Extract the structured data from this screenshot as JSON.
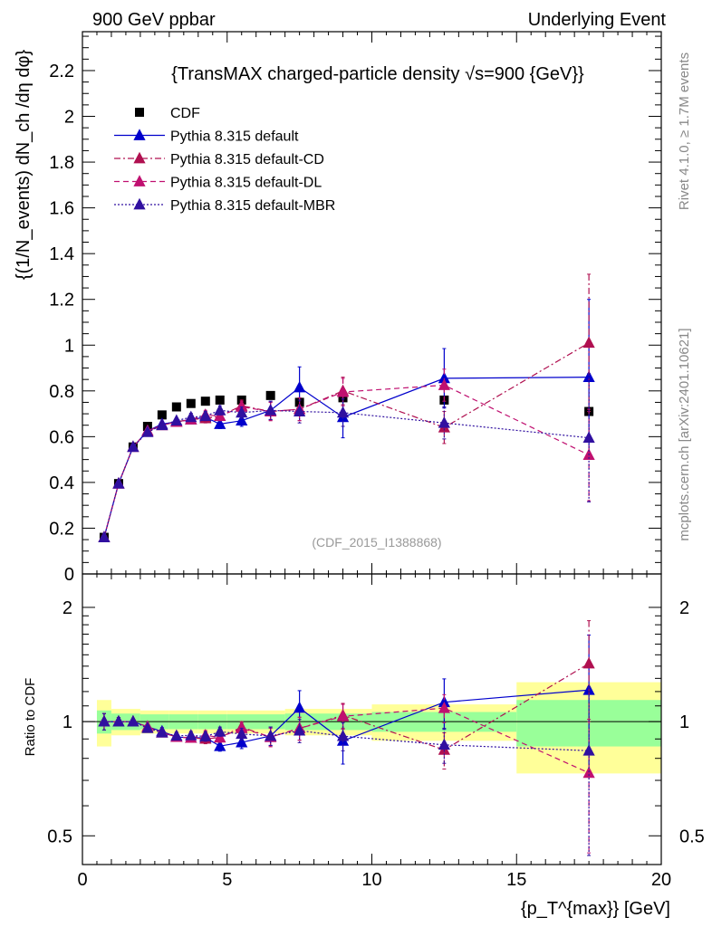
{
  "header": {
    "left": "900 GeV ppbar",
    "right": "Underlying Event"
  },
  "side_text": {
    "rivet": "Rivet 4.1.0, ≥ 1.7M events",
    "mcplots": "mcplots.cern.ch [arXiv:2401.10621]"
  },
  "chart_data": [
    {
      "type": "scatter",
      "panel": "main",
      "title": "{TransMAX charged-particle density √s=900 {GeV}}",
      "xlabel": "{p_T^{max}} [GeV]",
      "ylabel": "{(1/N_events) dN_ch /dη dφ}",
      "watermark": "(CDF_2015_I1388868)",
      "xlim": [
        0,
        20
      ],
      "ylim": [
        0,
        2.37
      ],
      "yticks": [
        "0",
        "0.2",
        "0.4",
        "0.6",
        "0.8",
        "1",
        "1.2",
        "1.4",
        "1.6",
        "1.8",
        "2",
        "2.2"
      ],
      "yticks_values": [
        0,
        0.2,
        0.4,
        0.6,
        0.8,
        1.0,
        1.2,
        1.4,
        1.6,
        1.8,
        2.0,
        2.2
      ],
      "xticks": [
        "0",
        "5",
        "10",
        "15",
        "20"
      ],
      "x": [
        0.75,
        1.25,
        1.75,
        2.25,
        2.75,
        3.25,
        3.75,
        4.25,
        4.75,
        5.5,
        6.5,
        7.5,
        9.0,
        12.5,
        17.5
      ],
      "series": [
        {
          "name": "CDF",
          "color": "#000000",
          "marker": "square",
          "values": [
            0.16,
            0.395,
            0.555,
            0.645,
            0.695,
            0.73,
            0.745,
            0.755,
            0.76,
            0.76,
            0.78,
            0.75,
            0.77,
            0.76,
            0.71
          ],
          "errors": [
            0.01,
            0.01,
            0.01,
            0.01,
            0.01,
            0.01,
            0.01,
            0.01,
            0.01,
            0.01,
            0.01,
            0.01,
            0.01,
            0.01,
            0.01
          ]
        },
        {
          "name": "Pythia 8.315 default",
          "color": "#0000cc",
          "line": "solid",
          "marker": "triangle",
          "values": [
            0.16,
            0.395,
            0.555,
            0.625,
            0.655,
            0.665,
            0.675,
            0.685,
            0.655,
            0.67,
            0.715,
            0.815,
            0.685,
            0.855,
            0.86
          ],
          "errors": [
            0.008,
            0.01,
            0.01,
            0.012,
            0.015,
            0.015,
            0.017,
            0.02,
            0.02,
            0.025,
            0.04,
            0.09,
            0.09,
            0.13,
            0.34
          ]
        },
        {
          "name": "Pythia 8.315 default-CD",
          "color": "#b01050",
          "line": "dashdot",
          "marker": "triangle",
          "values": [
            0.16,
            0.395,
            0.555,
            0.625,
            0.65,
            0.665,
            0.675,
            0.68,
            0.69,
            0.735,
            0.71,
            0.72,
            0.8,
            0.64,
            1.01
          ],
          "errors": [
            0.008,
            0.01,
            0.01,
            0.012,
            0.015,
            0.015,
            0.017,
            0.02,
            0.02,
            0.025,
            0.04,
            0.05,
            0.06,
            0.07,
            0.3
          ]
        },
        {
          "name": "Pythia 8.315 default-DL",
          "color": "#c01070",
          "line": "dashed",
          "marker": "triangle",
          "values": [
            0.16,
            0.395,
            0.555,
            0.625,
            0.65,
            0.665,
            0.675,
            0.695,
            0.69,
            0.73,
            0.71,
            0.72,
            0.795,
            0.825,
            0.52
          ],
          "errors": [
            0.008,
            0.01,
            0.01,
            0.012,
            0.015,
            0.015,
            0.017,
            0.02,
            0.02,
            0.025,
            0.04,
            0.05,
            0.06,
            0.07,
            0.2
          ]
        },
        {
          "name": "Pythia 8.315 default-MBR",
          "color": "#3010a0",
          "line": "dotted",
          "marker": "triangle",
          "values": [
            0.16,
            0.395,
            0.555,
            0.62,
            0.65,
            0.67,
            0.685,
            0.69,
            0.715,
            0.705,
            0.715,
            0.71,
            0.705,
            0.66,
            0.595
          ],
          "errors": [
            0.008,
            0.01,
            0.01,
            0.012,
            0.015,
            0.015,
            0.017,
            0.02,
            0.02,
            0.025,
            0.04,
            0.05,
            0.06,
            0.07,
            0.28
          ]
        }
      ]
    },
    {
      "type": "scatter",
      "panel": "ratio",
      "ylabel": "Ratio to CDF",
      "yscale": "log",
      "ylim": [
        0.42,
        2.45
      ],
      "yticks": [
        "0.5",
        "1",
        "2"
      ],
      "yticks_values": [
        0.5,
        1,
        2
      ],
      "bands": {
        "edges": [
          [
            0.5,
            1.0
          ],
          [
            1.0,
            2.0
          ],
          [
            2.0,
            3.0
          ],
          [
            3.0,
            4.0
          ],
          [
            4.0,
            5.0
          ],
          [
            5.0,
            7.0
          ],
          [
            7.0,
            10.0
          ],
          [
            10.0,
            15.0
          ],
          [
            15.0,
            20.0
          ]
        ],
        "inner_halfwidth": [
          0.07,
          0.05,
          0.045,
          0.045,
          0.045,
          0.045,
          0.05,
          0.06,
          0.14
        ],
        "outer_halfwidth": [
          0.14,
          0.08,
          0.07,
          0.07,
          0.07,
          0.07,
          0.08,
          0.11,
          0.27
        ],
        "inner_color": "#99ff99",
        "outer_color": "#ffff99"
      }
    }
  ]
}
